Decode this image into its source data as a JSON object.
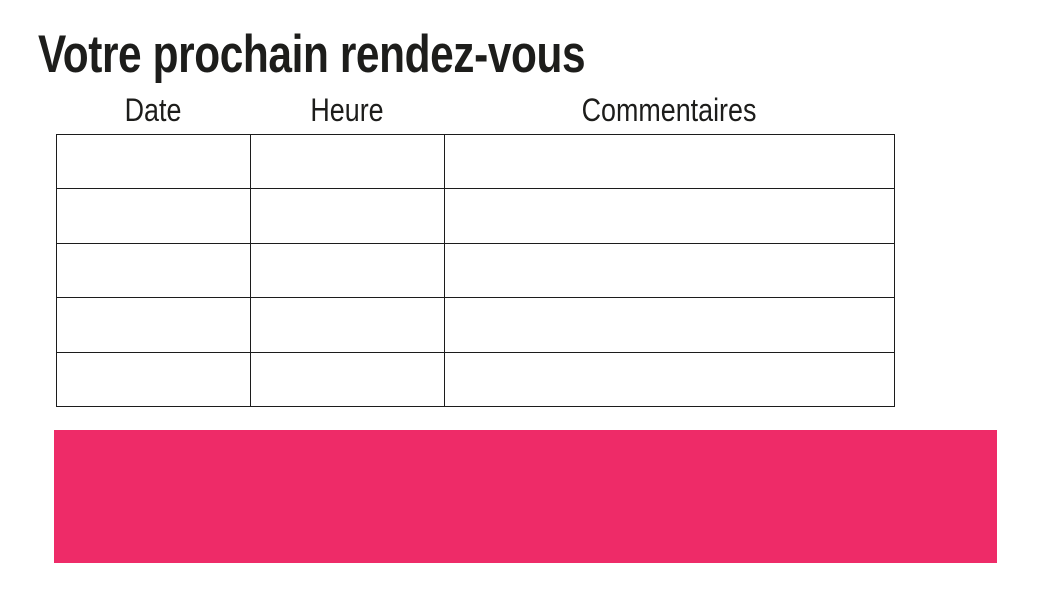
{
  "page": {
    "title": "Votre prochain rendez-vous",
    "background_color": "#ffffff",
    "text_color": "#1d1d1b"
  },
  "table": {
    "columns": [
      {
        "label": "Date"
      },
      {
        "label": "Heure"
      },
      {
        "label": "Commentaires"
      }
    ],
    "rows": [
      {
        "cells": [
          "",
          "",
          ""
        ]
      },
      {
        "cells": [
          "",
          "",
          ""
        ]
      },
      {
        "cells": [
          "",
          "",
          ""
        ]
      },
      {
        "cells": [
          "",
          "",
          ""
        ]
      },
      {
        "cells": [
          "",
          "",
          ""
        ]
      }
    ],
    "border_color": "#1c1c1c"
  },
  "footer_banner": {
    "color": "#ee2b68"
  }
}
